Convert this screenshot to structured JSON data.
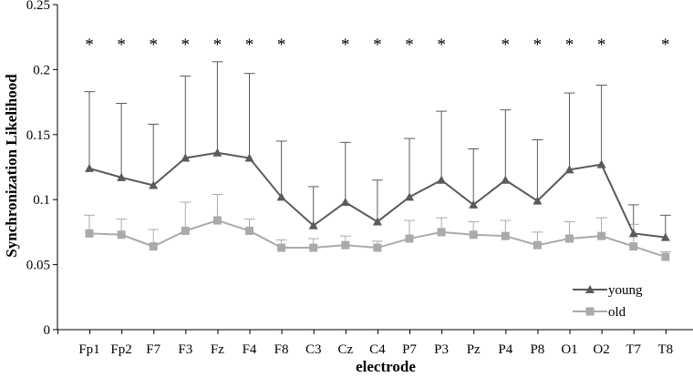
{
  "chart_data": {
    "type": "line",
    "xlabel": "electrode",
    "ylabel": "Synchronization Likelihood",
    "ylim": [
      0,
      0.25
    ],
    "yticks": [
      "0",
      "0.05",
      "0.1",
      "0.15",
      "0.2",
      "0.25"
    ],
    "categories": [
      "Fp1",
      "Fp2",
      "F7",
      "F3",
      "Fz",
      "F4",
      "F8",
      "C3",
      "Cz",
      "C4",
      "P7",
      "P3",
      "Pz",
      "P4",
      "P8",
      "O1",
      "O2",
      "T7",
      "T8"
    ],
    "series": [
      {
        "name": "young",
        "marker": "triangle",
        "color": "#5a5a5a",
        "values": [
          0.124,
          0.117,
          0.111,
          0.132,
          0.136,
          0.132,
          0.102,
          0.08,
          0.098,
          0.083,
          0.102,
          0.115,
          0.096,
          0.115,
          0.099,
          0.123,
          0.127,
          0.074,
          0.071
        ],
        "error_upper": [
          0.183,
          0.174,
          0.158,
          0.195,
          0.206,
          0.197,
          0.145,
          0.11,
          0.144,
          0.115,
          0.147,
          0.168,
          0.139,
          0.169,
          0.146,
          0.182,
          0.188,
          0.096,
          0.088
        ]
      },
      {
        "name": "old",
        "marker": "square",
        "color": "#aaaaaa",
        "values": [
          0.074,
          0.073,
          0.064,
          0.076,
          0.084,
          0.076,
          0.063,
          0.063,
          0.065,
          0.063,
          0.07,
          0.075,
          0.073,
          0.072,
          0.065,
          0.07,
          0.072,
          0.064,
          0.056
        ],
        "error_upper": [
          0.088,
          0.085,
          0.077,
          0.098,
          0.104,
          0.085,
          0.069,
          0.07,
          0.072,
          0.068,
          0.084,
          0.086,
          0.083,
          0.084,
          0.075,
          0.083,
          0.086,
          0.081,
          0.06
        ]
      }
    ],
    "significance_marker": "*",
    "significant": [
      true,
      true,
      true,
      true,
      true,
      true,
      true,
      false,
      true,
      true,
      true,
      true,
      false,
      true,
      true,
      true,
      true,
      false,
      true
    ],
    "legend": [
      "young",
      "old"
    ],
    "legend_position": "bottom-right"
  }
}
